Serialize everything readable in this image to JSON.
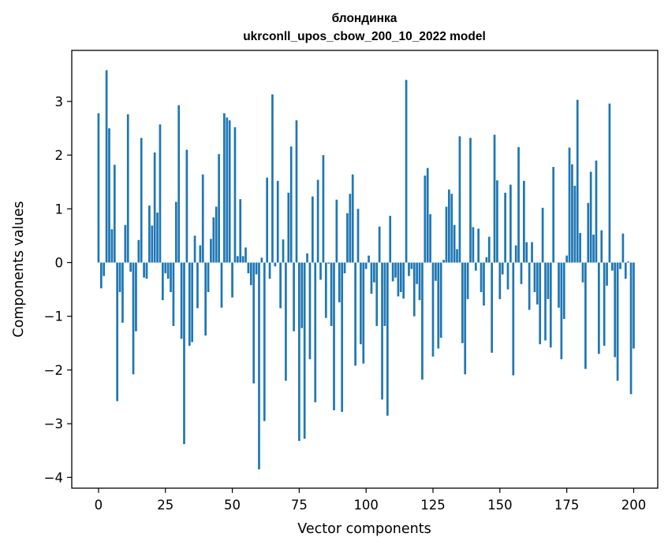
{
  "chart_data": {
    "type": "bar",
    "title_line1": "блондинка",
    "title_line2": "ukrconll_upos_cbow_200_10_2022 model",
    "xlabel": "Vector components",
    "ylabel": "Components values",
    "xlim": [
      -10,
      209
    ],
    "ylim": [
      -4.2,
      3.95
    ],
    "xticks": [
      0,
      25,
      50,
      75,
      100,
      125,
      150,
      175,
      200
    ],
    "yticks": [
      3,
      2,
      1,
      0,
      -1,
      -2,
      -3,
      -4
    ],
    "xtick_labels": [
      "0",
      "25",
      "50",
      "75",
      "100",
      "125",
      "150",
      "175",
      "200"
    ],
    "ytick_labels": [
      "3",
      "2",
      "1",
      "0",
      "−1",
      "−2",
      "−3",
      "−4"
    ],
    "bar_color": "#1f77b4",
    "values": [
      2.78,
      -0.48,
      -0.25,
      3.58,
      2.5,
      0.62,
      1.82,
      -2.58,
      -0.55,
      -1.12,
      0.7,
      2.76,
      -0.17,
      -2.08,
      -1.28,
      0.42,
      2.32,
      -0.28,
      -0.3,
      1.06,
      0.69,
      2.05,
      0.93,
      2.57,
      -0.7,
      -0.2,
      -0.3,
      -0.55,
      -1.18,
      1.13,
      2.93,
      -1.42,
      -3.38,
      2.1,
      -1.55,
      -1.48,
      0.5,
      -0.85,
      0.32,
      1.64,
      -1.36,
      -0.55,
      0.44,
      0.84,
      1.04,
      2.02,
      -0.84,
      2.78,
      2.7,
      2.65,
      -0.65,
      2.52,
      0.12,
      1.18,
      0.12,
      0.28,
      -0.2,
      -0.42,
      -2.25,
      -0.22,
      -3.85,
      0.09,
      -2.95,
      1.58,
      -0.3,
      3.13,
      -0.07,
      1.52,
      -0.85,
      0.43,
      -2.2,
      1.3,
      2.16,
      -1.28,
      2.65,
      -3.32,
      -1.22,
      -3.28,
      0.17,
      -1.8,
      1.23,
      -2.6,
      1.54,
      -0.32,
      2.0,
      -1.03,
      -0.02,
      -1.18,
      -2.75,
      1.17,
      -0.74,
      -2.78,
      -0.2,
      0.92,
      1.28,
      1.64,
      -1.92,
      1.0,
      -1.52,
      -1.88,
      -0.12,
      0.13,
      -0.58,
      -0.37,
      -1.18,
      0.67,
      -2.55,
      -1.18,
      -2.85,
      0.87,
      -0.35,
      -0.28,
      -0.63,
      -0.55,
      -0.67,
      3.4,
      -0.25,
      -0.12,
      -1.0,
      -0.4,
      -0.7,
      -2.18,
      1.62,
      1.76,
      0.9,
      -1.75,
      -0.34,
      -1.6,
      -1.4,
      0.05,
      1.04,
      1.36,
      1.28,
      0.7,
      0.25,
      2.35,
      -1.5,
      -2.08,
      -0.68,
      2.32,
      0.66,
      -0.15,
      0.63,
      -0.55,
      -0.8,
      0.1,
      0.48,
      -1.68,
      2.38,
      1.53,
      -0.68,
      -0.22,
      1.3,
      -0.5,
      1.45,
      -2.1,
      0.32,
      2.15,
      -0.4,
      1.52,
      0.38,
      -0.88,
      0.38,
      -0.55,
      -0.78,
      -1.52,
      1.02,
      -1.45,
      -0.68,
      -1.58,
      1.78,
      0.0,
      -0.84,
      -1.8,
      -1.05,
      0.13,
      2.14,
      1.83,
      1.43,
      3.03,
      0.55,
      -0.37,
      -1.98,
      1.11,
      1.69,
      0.52,
      1.9,
      -1.7,
      0.6,
      -1.55,
      -0.43,
      2.96,
      -0.15,
      -1.76,
      -2.2,
      -0.12,
      0.54,
      -0.3,
      0.02,
      -2.45,
      -1.6
    ]
  }
}
